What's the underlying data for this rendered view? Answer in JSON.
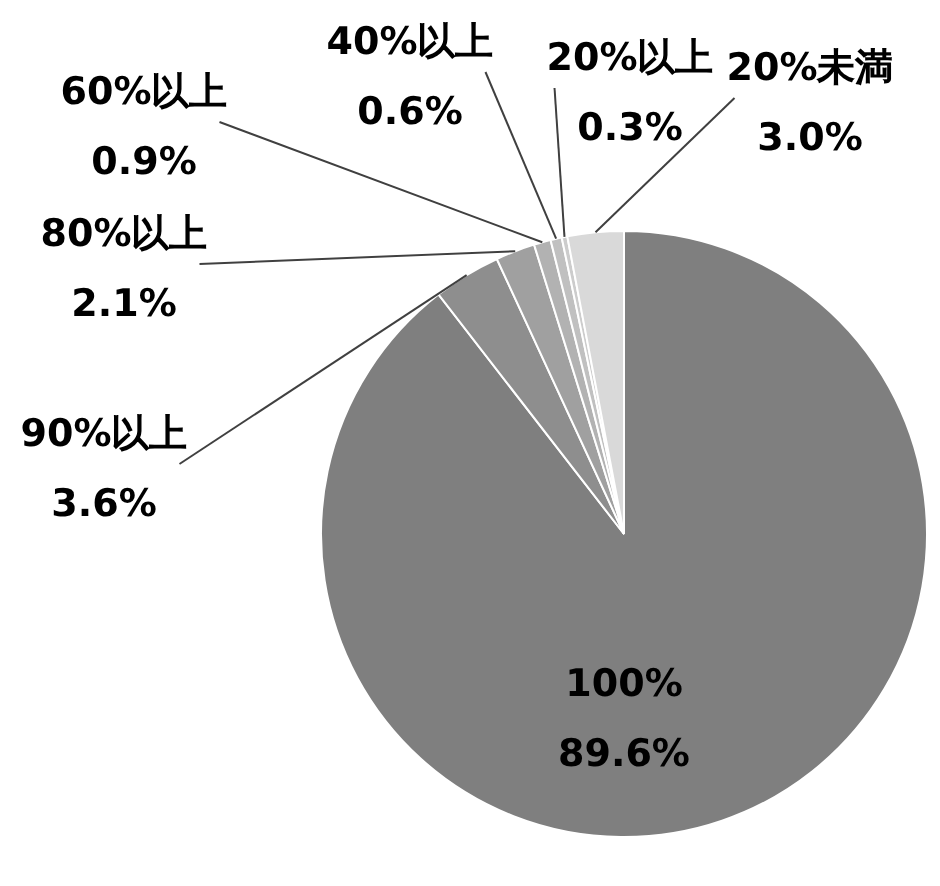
{
  "chart_data": {
    "type": "pie",
    "categories": [
      "100%",
      "90%以上",
      "80%以上",
      "60%以上",
      "40%以上",
      "20%以上",
      "20%未満"
    ],
    "values": [
      89.6,
      3.6,
      2.1,
      0.9,
      0.6,
      0.3,
      3.0
    ],
    "colors": [
      "#7f7f7f",
      "#8e8e8e",
      "#a0a0a0",
      "#b2b2b2",
      "#c0c0c0",
      "#cccccc",
      "#d9d9d9"
    ],
    "value_labels": [
      "89.6%",
      "3.6%",
      "2.1%",
      "0.9%",
      "0.6%",
      "0.3%",
      "3.0%"
    ],
    "legend": false
  }
}
